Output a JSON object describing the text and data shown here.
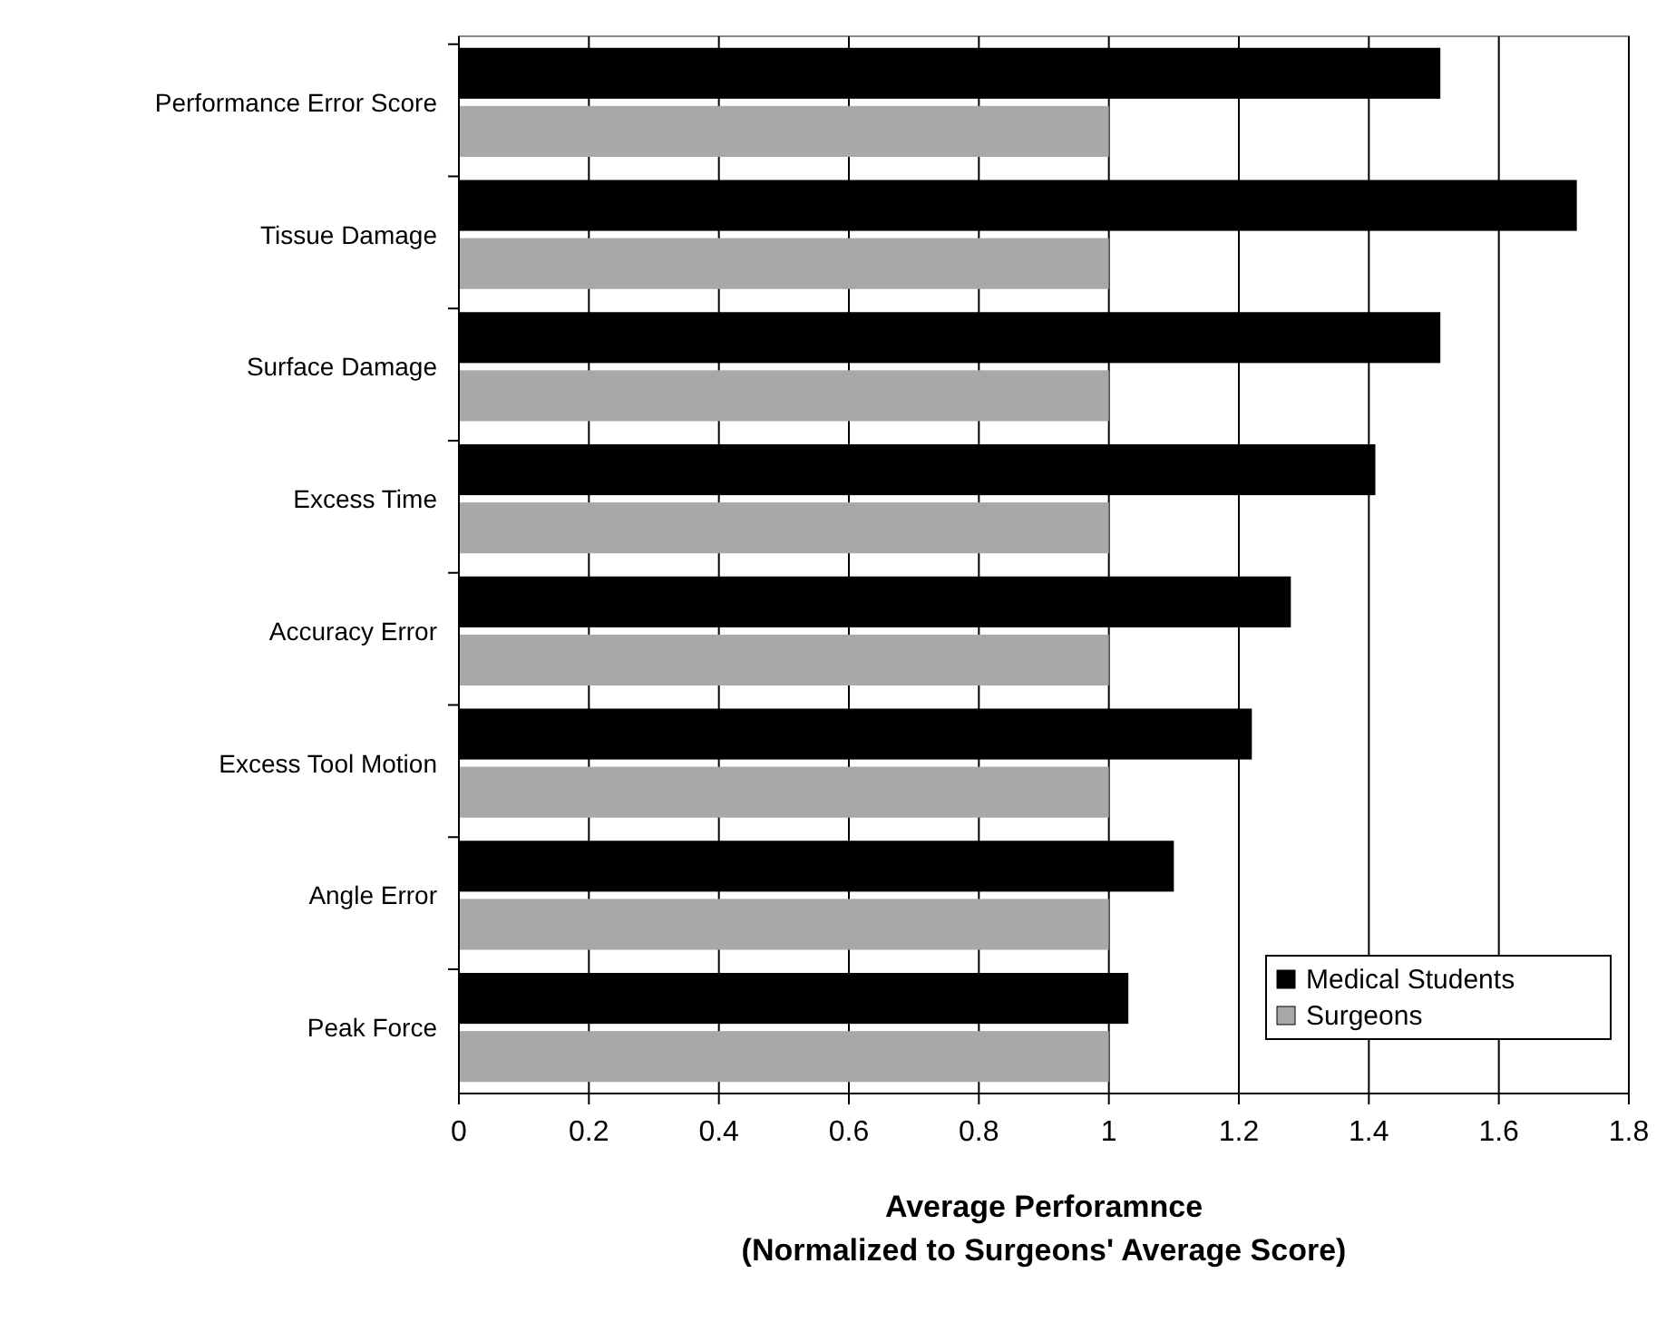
{
  "chart_data": {
    "type": "bar",
    "orientation": "horizontal",
    "xlabel": "Average Perforamnce\n(Normalized to Surgeons' Average Score)",
    "categories": [
      "Performance Error Score",
      "Tissue Damage",
      "Surface Damage",
      "Excess Time",
      "Accuracy  Error",
      "Excess Tool Motion",
      "Angle Error",
      "Peak Force"
    ],
    "series": [
      {
        "name": "Medical Students",
        "color": "#000000",
        "values": [
          1.51,
          1.72,
          1.51,
          1.41,
          1.28,
          1.22,
          1.1,
          1.03
        ]
      },
      {
        "name": "Surgeons",
        "color": "#a8a8a8",
        "values": [
          1,
          1,
          1,
          1,
          1,
          1,
          1,
          1
        ]
      }
    ],
    "xlim": [
      0,
      1.8
    ],
    "xticks": [
      0,
      0.2,
      0.4,
      0.6,
      0.8,
      1,
      1.2,
      1.4,
      1.6,
      1.8
    ],
    "grid": "x",
    "legend": "bottom right"
  }
}
